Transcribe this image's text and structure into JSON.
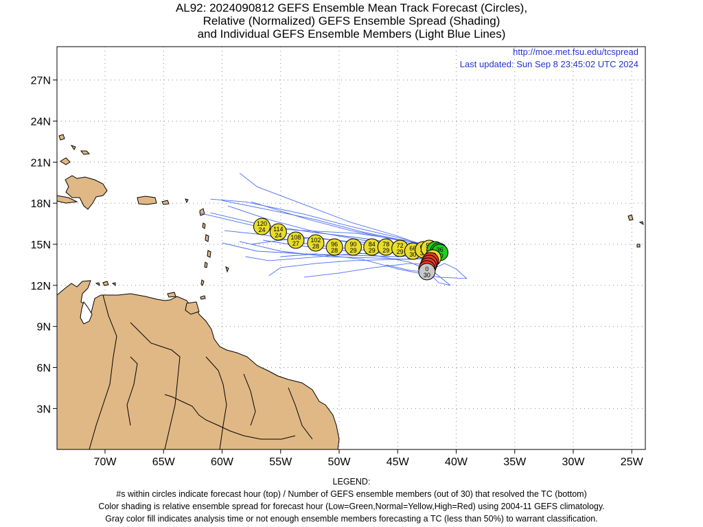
{
  "title": {
    "line1": "AL92: 2024090812 GEFS Ensemble Mean Track Forecast (Circles),",
    "line2": "Relative (Normalized) GEFS Ensemble Spread (Shading)",
    "line3": "and Individual GEFS Ensemble Members (Light Blue Lines)"
  },
  "info": {
    "url": "http://moe.met.fsu.edu/tcspread",
    "updated": "Last updated: Sun Sep 8 23:45:02 UTC 2024"
  },
  "colors": {
    "land": "#dfb886",
    "coast": "#000000",
    "member_line": "#4a6cf0",
    "grid": "#888888",
    "low": "#22cc22",
    "normal": "#e8dc2c",
    "high": "#e83b2b",
    "gray": "#c8c8c8",
    "info_text": "#2233cc"
  },
  "map": {
    "lat_labels": [
      "27N",
      "24N",
      "21N",
      "18N",
      "15N",
      "12N",
      "9N",
      "6N",
      "3N"
    ],
    "lon_labels": [
      "70W",
      "65W",
      "60W",
      "55W",
      "50W",
      "45W",
      "40W",
      "35W",
      "30W",
      "25W"
    ]
  },
  "track": [
    {
      "hour": "120",
      "members": "24",
      "lon": -56.6,
      "lat": 16.3,
      "color": "normal"
    },
    {
      "hour": "114",
      "members": "24",
      "lon": -55.2,
      "lat": 15.9,
      "color": "normal"
    },
    {
      "hour": "108",
      "members": "27",
      "lon": -53.7,
      "lat": 15.3,
      "color": "normal"
    },
    {
      "hour": "102",
      "members": "28",
      "lon": -52.0,
      "lat": 15.1,
      "color": "normal"
    },
    {
      "hour": "96",
      "members": "28",
      "lon": -50.4,
      "lat": 14.8,
      "color": "normal"
    },
    {
      "hour": "90",
      "members": "29",
      "lon": -48.8,
      "lat": 14.8,
      "color": "normal"
    },
    {
      "hour": "84",
      "members": "29",
      "lon": -47.2,
      "lat": 14.8,
      "color": "normal"
    },
    {
      "hour": "78",
      "members": "29",
      "lon": -46.0,
      "lat": 14.8,
      "color": "normal"
    },
    {
      "hour": "72",
      "members": "29",
      "lon": -44.8,
      "lat": 14.7,
      "color": "normal"
    },
    {
      "hour": "66",
      "members": "30",
      "lon": -43.7,
      "lat": 14.5,
      "color": "normal"
    },
    {
      "hour": "60",
      "members": "30",
      "lon": -42.8,
      "lat": 14.6,
      "color": "normal"
    },
    {
      "hour": "54",
      "members": "30",
      "lon": -42.3,
      "lat": 14.7,
      "color": "normal"
    },
    {
      "hour": "48",
      "members": "30",
      "lon": -41.8,
      "lat": 14.6,
      "color": "low"
    },
    {
      "hour": "42",
      "members": "30",
      "lon": -41.5,
      "lat": 14.5,
      "color": "low"
    },
    {
      "hour": "36",
      "members": "30",
      "lon": -41.4,
      "lat": 14.4,
      "color": "low"
    },
    {
      "hour": "30",
      "members": "30",
      "lon": -42.0,
      "lat": 14.0,
      "color": "normal"
    },
    {
      "hour": "24",
      "members": "30",
      "lon": -42.2,
      "lat": 13.8,
      "color": "high"
    },
    {
      "hour": "18",
      "members": "30",
      "lon": -42.3,
      "lat": 13.6,
      "color": "high"
    },
    {
      "hour": "12",
      "members": "30",
      "lon": -42.4,
      "lat": 13.4,
      "color": "high"
    },
    {
      "hour": "6",
      "members": "30",
      "lon": -42.5,
      "lat": 13.2,
      "color": "high"
    },
    {
      "hour": "0",
      "members": "30",
      "lon": -42.5,
      "lat": 13.0,
      "color": "gray"
    }
  ],
  "members": [
    [
      [
        -42.5,
        13.0
      ],
      [
        -41.5,
        14.3
      ],
      [
        -44,
        14.9
      ],
      [
        -48,
        15.3
      ],
      [
        -52,
        15.9
      ],
      [
        -56,
        16.8
      ],
      [
        -59.5,
        17.8
      ]
    ],
    [
      [
        -42.5,
        13.0
      ],
      [
        -41.5,
        14.4
      ],
      [
        -44,
        15.2
      ],
      [
        -48,
        15.9
      ],
      [
        -52,
        16.8
      ],
      [
        -56.5,
        17.6
      ],
      [
        -60,
        18.2
      ]
    ],
    [
      [
        -42.5,
        13.0
      ],
      [
        -41.8,
        14.6
      ],
      [
        -45,
        15.6
      ],
      [
        -49,
        16.6
      ],
      [
        -53,
        17.9
      ],
      [
        -57,
        19.2
      ],
      [
        -58.5,
        20.2
      ]
    ],
    [
      [
        -42.5,
        13.0
      ],
      [
        -41.3,
        14.5
      ],
      [
        -45,
        15.3
      ],
      [
        -49,
        16.0
      ],
      [
        -53,
        16.9
      ],
      [
        -57.5,
        18.1
      ]
    ],
    [
      [
        -42.5,
        13.0
      ],
      [
        -41.2,
        14.2
      ],
      [
        -44.5,
        14.5
      ],
      [
        -48.5,
        14.6
      ],
      [
        -52.5,
        15.0
      ],
      [
        -56.5,
        15.7
      ],
      [
        -59.8,
        16.0
      ]
    ],
    [
      [
        -42.5,
        13.0
      ],
      [
        -41.6,
        14.3
      ],
      [
        -45,
        14.1
      ],
      [
        -49,
        14.2
      ],
      [
        -53,
        14.3
      ],
      [
        -57,
        14.5
      ],
      [
        -60,
        15.1
      ]
    ],
    [
      [
        -42.5,
        13.0
      ],
      [
        -41.7,
        14.0
      ],
      [
        -45,
        13.9
      ],
      [
        -49,
        13.8
      ],
      [
        -52,
        13.6
      ],
      [
        -55,
        13.3
      ],
      [
        -56,
        12.7
      ]
    ],
    [
      [
        -42.5,
        13.0
      ],
      [
        -41.0,
        13.6
      ],
      [
        -40,
        13.2
      ],
      [
        -39.1,
        12.5
      ],
      [
        -41.5,
        12.6
      ],
      [
        -45,
        13.2
      ],
      [
        -48,
        13.9
      ],
      [
        -52,
        14.3
      ],
      [
        -55,
        14.1
      ]
    ],
    [
      [
        -42.5,
        13.0
      ],
      [
        -42.0,
        13.5
      ],
      [
        -44,
        13.6
      ],
      [
        -47,
        13.3
      ],
      [
        -50,
        12.9
      ],
      [
        -53,
        12.6
      ]
    ],
    [
      [
        -42.5,
        13.0
      ],
      [
        -41.5,
        14.5
      ],
      [
        -44,
        14.6
      ],
      [
        -48,
        15.0
      ],
      [
        -52,
        15.5
      ],
      [
        -55,
        15.3
      ],
      [
        -57.5,
        15.0
      ]
    ],
    [
      [
        -42.5,
        13.0
      ],
      [
        -41.1,
        14.7
      ],
      [
        -44.5,
        15.3
      ],
      [
        -48.5,
        15.8
      ],
      [
        -53,
        16.0
      ],
      [
        -57,
        16.2
      ]
    ],
    [
      [
        -42.5,
        13.0
      ],
      [
        -41.3,
        14.0
      ],
      [
        -44,
        13.9
      ],
      [
        -47,
        14.0
      ],
      [
        -51,
        14.1
      ],
      [
        -55,
        14.5
      ],
      [
        -58.5,
        15.2
      ]
    ],
    [
      [
        -42.5,
        13.0
      ],
      [
        -42.2,
        12.8
      ],
      [
        -41.5,
        12.2
      ],
      [
        -40.5,
        12.0
      ],
      [
        -41.8,
        12.9
      ],
      [
        -44,
        13.1
      ],
      [
        -46,
        13.5
      ]
    ],
    [
      [
        -42.5,
        13.0
      ],
      [
        -41.9,
        14.8
      ],
      [
        -45,
        15.5
      ],
      [
        -49,
        16.3
      ],
      [
        -53,
        17.2
      ],
      [
        -58,
        18.1
      ],
      [
        -61,
        18.3
      ]
    ],
    [
      [
        -42.5,
        13.0
      ],
      [
        -41.4,
        14.1
      ],
      [
        -45,
        14.4
      ],
      [
        -49,
        14.3
      ],
      [
        -53,
        14.0
      ],
      [
        -56,
        13.8
      ],
      [
        -58,
        14.1
      ]
    ],
    [
      [
        -42.5,
        13.0
      ],
      [
        -41.2,
        14.9
      ],
      [
        -45,
        15.0
      ],
      [
        -49,
        15.2
      ],
      [
        -53,
        15.5
      ],
      [
        -58,
        16.5
      ],
      [
        -62,
        17.3
      ]
    ],
    [
      [
        -42.5,
        13.0
      ],
      [
        -42.6,
        13.2
      ],
      [
        -44,
        13.7
      ],
      [
        -47,
        14.2
      ],
      [
        -50,
        14.6
      ],
      [
        -53.5,
        14.9
      ],
      [
        -56.5,
        15.3
      ]
    ],
    [
      [
        -42.5,
        13.0
      ],
      [
        -41.3,
        14.6
      ],
      [
        -44.5,
        15.0
      ],
      [
        -48.5,
        15.5
      ],
      [
        -52.5,
        15.9
      ],
      [
        -57,
        16.5
      ],
      [
        -61,
        17.3
      ]
    ]
  ],
  "legend": {
    "heading": "LEGEND:",
    "line1": "#s within circles indicate forecast hour (top) / Number of GEFS ensemble members (out of 30) that resolved the TC (bottom)",
    "line2": "Color shading is relative ensemble spread for forecast hour (Low=Green,Normal=Yellow,High=Red) using 2004-11 GEFS climatology.",
    "line3": "Gray color fill indicates analysis time or not enough ensemble members forecasting a TC (less than 50%) to warrant classification."
  }
}
